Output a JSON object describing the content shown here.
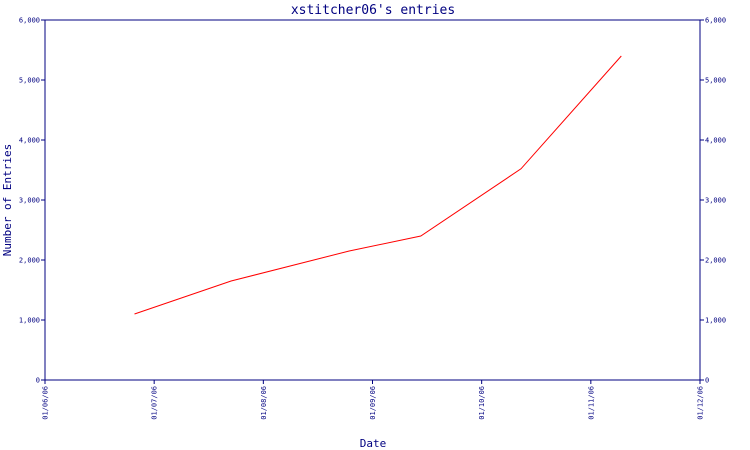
{
  "chart_data": {
    "type": "line",
    "title": "xstitcher06's entries",
    "xlabel": "Date",
    "ylabel": "Number of Entries",
    "x_ticks": [
      "01/06/06",
      "01/07/06",
      "01/08/06",
      "01/09/06",
      "01/10/06",
      "01/11/06",
      "01/12/06"
    ],
    "y_ticks": [
      "0",
      "1,000",
      "2,000",
      "3,000",
      "4,000",
      "5,000",
      "6,000"
    ],
    "ylim": [
      0,
      6000
    ],
    "xlim": [
      "2006-06-01",
      "2006-12-01"
    ],
    "series": [
      {
        "x": [
          "2006-06-26",
          "2006-07-23",
          "2006-08-25",
          "2006-09-14",
          "2006-10-12",
          "2006-11-09"
        ],
        "y": [
          1100,
          1650,
          2150,
          2400,
          3520,
          5400
        ]
      }
    ],
    "grid": false,
    "colors": {
      "axis": "#000080",
      "line": "#ff0000",
      "background": "#ffffff"
    }
  }
}
